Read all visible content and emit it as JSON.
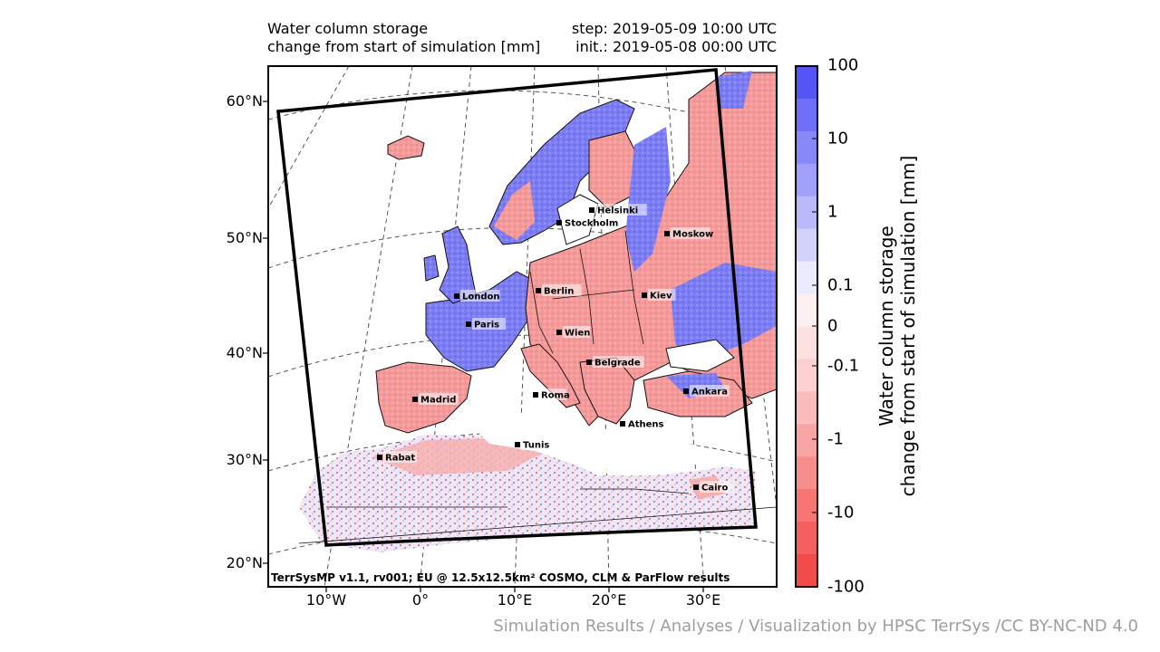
{
  "header": {
    "title_line1": "Water column storage",
    "title_line2": "change from start of simulation [mm]",
    "step": "step: 2019-05-09 10:00 UTC",
    "init": "init.: 2019-05-08 00:00 UTC"
  },
  "lat_labels": [
    "60°N",
    "50°N",
    "40°N",
    "30°N",
    "20°N"
  ],
  "lon_labels": [
    "10°W",
    "0°",
    "10°E",
    "20°E",
    "30°E"
  ],
  "cities": [
    "Helsinki",
    "Stockholm",
    "Moskow",
    "London",
    "Berlin",
    "Kiev",
    "Paris",
    "Wien",
    "Belgrade",
    "Madrid",
    "Roma",
    "Ankara",
    "Athens",
    "Tunis",
    "Rabat",
    "Cairo"
  ],
  "footer": "TerrSysMP v1.1, rv001; EU @ 12.5x12.5km² COSMO, CLM & ParFlow results",
  "colorbar": {
    "title_line1": "Water column storage",
    "title_line2": "change from start of simulation [mm]",
    "ticks": [
      "100",
      "10",
      "1",
      "0.1",
      "0",
      "-0.1",
      "-1",
      "-10",
      "-100"
    ],
    "colors": [
      "#5555f5",
      "#6e6ef7",
      "#8787f8",
      "#a0a0fa",
      "#b9b9fb",
      "#d2d2fc",
      "#ebebfd",
      "#fdf0f0",
      "#fde1e1",
      "#fcd0d0",
      "#fbbcbc",
      "#f9a5a5",
      "#f78e8e",
      "#f67676",
      "#f45f5f",
      "#f24b4b"
    ]
  },
  "credit": "Simulation Results / Analyses / Visualization by HPSC TerrSys /CC BY-NC-ND 4.0"
}
